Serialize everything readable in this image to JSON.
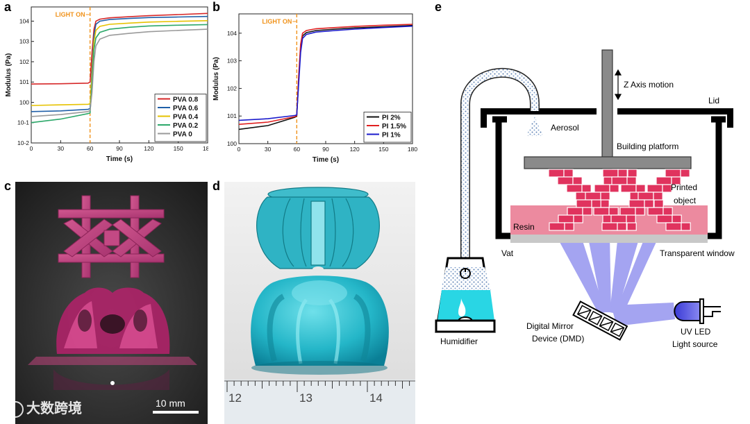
{
  "panels": {
    "a": "a",
    "b": "b",
    "c": "c",
    "d": "d",
    "e": "e"
  },
  "chart_data": [
    {
      "type": "line",
      "panel": "a",
      "xlabel": "Time (s)",
      "ylabel": "Modulus (Pa)",
      "xlim": [
        0,
        180
      ],
      "ylim": [
        0.01,
        50000
      ],
      "yscale": "log",
      "xticks": [
        0,
        30,
        60,
        90,
        120,
        150,
        180
      ],
      "yticks": [
        {
          "v": 0.01,
          "t": "10-2"
        },
        {
          "v": 0.1,
          "t": "10-1"
        },
        {
          "v": 1,
          "t": "100"
        },
        {
          "v": 10,
          "t": "101"
        },
        {
          "v": 100,
          "t": "102"
        },
        {
          "v": 1000,
          "t": "103"
        },
        {
          "v": 10000,
          "t": "104"
        }
      ],
      "annotation": "LIGHT ON",
      "annotation_x": 60,
      "legend_position": "bottom-right",
      "series": [
        {
          "name": "PVA 0.8",
          "color": "#d62728",
          "x": [
            0,
            30,
            58,
            60,
            62,
            64,
            66,
            70,
            80,
            100,
            120,
            150,
            180
          ],
          "y": [
            8,
            8.2,
            8.8,
            10,
            300,
            4000,
            10000,
            12500,
            14500,
            16500,
            18500,
            21000,
            24000
          ]
        },
        {
          "name": "PVA 0.6",
          "color": "#1f5fa8",
          "x": [
            0,
            30,
            58,
            60,
            62,
            64,
            66,
            70,
            80,
            100,
            120,
            150,
            180
          ],
          "y": [
            0.35,
            0.38,
            0.45,
            0.5,
            40,
            2000,
            7000,
            10000,
            12000,
            13500,
            15000,
            16000,
            17000
          ]
        },
        {
          "name": "PVA 0.4",
          "color": "#e6c200",
          "x": [
            0,
            30,
            58,
            60,
            62,
            64,
            66,
            70,
            80,
            100,
            120,
            150,
            180
          ],
          "y": [
            0.7,
            0.75,
            0.8,
            0.85,
            20,
            1000,
            3500,
            5500,
            7000,
            8000,
            9000,
            9800,
            10500
          ]
        },
        {
          "name": "PVA 0.2",
          "color": "#2ca86a",
          "x": [
            0,
            30,
            58,
            60,
            62,
            64,
            66,
            70,
            80,
            100,
            120,
            150,
            180
          ],
          "y": [
            0.1,
            0.15,
            0.28,
            0.3,
            8,
            400,
            1500,
            2800,
            4000,
            5000,
            5800,
            6300,
            6800
          ]
        },
        {
          "name": "PVA 0",
          "color": "#9a9a9a",
          "x": [
            0,
            30,
            58,
            60,
            62,
            64,
            66,
            70,
            80,
            100,
            120,
            150,
            180
          ],
          "y": [
            0.2,
            0.25,
            0.35,
            0.4,
            3,
            100,
            600,
            1300,
            2000,
            2500,
            3000,
            3500,
            4000
          ]
        }
      ]
    },
    {
      "type": "line",
      "panel": "b",
      "xlabel": "Time (s)",
      "ylabel": "Modulus (Pa)",
      "xlim": [
        0,
        180
      ],
      "ylim": [
        1,
        50000
      ],
      "yscale": "log",
      "xticks": [
        0,
        30,
        60,
        90,
        120,
        150,
        180
      ],
      "yticks": [
        {
          "v": 1,
          "t": "100"
        },
        {
          "v": 10,
          "t": "101"
        },
        {
          "v": 100,
          "t": "102"
        },
        {
          "v": 1000,
          "t": "103"
        },
        {
          "v": 10000,
          "t": "104"
        }
      ],
      "annotation": "LIGHT ON",
      "annotation_x": 60,
      "legend_position": "bottom-right",
      "series": [
        {
          "name": "PI 2%",
          "color": "#111111",
          "x": [
            0,
            30,
            58,
            60,
            62,
            64,
            66,
            70,
            80,
            100,
            120,
            150,
            180
          ],
          "y": [
            3.3,
            4.5,
            9,
            10,
            200,
            3000,
            8000,
            10500,
            12500,
            14000,
            15500,
            17000,
            19000
          ]
        },
        {
          "name": "PI 1.5%",
          "color": "#e02020",
          "x": [
            0,
            30,
            58,
            60,
            62,
            64,
            66,
            70,
            80,
            100,
            120,
            150,
            180
          ],
          "y": [
            5,
            6,
            9.5,
            10.5,
            300,
            4000,
            10000,
            12500,
            14500,
            16000,
            17500,
            19500,
            21000
          ]
        },
        {
          "name": "PI 1%",
          "color": "#1a1acc",
          "x": [
            0,
            30,
            58,
            60,
            62,
            64,
            66,
            70,
            80,
            100,
            120,
            150,
            180
          ],
          "y": [
            7,
            8,
            10.5,
            11,
            150,
            2000,
            6500,
            9000,
            11000,
            12500,
            14000,
            16000,
            18000
          ]
        }
      ]
    }
  ],
  "photo_c": {
    "scale_bar": "10 mm"
  },
  "photo_d": {
    "ruler_labels": [
      "12",
      "13",
      "14"
    ]
  },
  "schematic": {
    "z_axis": "Z Axis motion",
    "lid": "Lid",
    "aerosol": "Aerosol",
    "building_platform": "Building platform",
    "printed_object_1": "Printed",
    "printed_object_2": "object",
    "resin": "Resin",
    "vat": "Vat",
    "transparent_window": "Transparent window",
    "dmd_1": "Digital Mirror",
    "dmd_2": "Device (DMD)",
    "uv_led_1": "UV LED",
    "uv_led_2": "Light source",
    "humidifier": "Humidifier"
  },
  "watermark": "大数跨境",
  "colors": {
    "light_on": "#f0921a",
    "resin": "#e9758e",
    "lattice": "#e0335e",
    "uv_beam": "#5a5ae6",
    "water": "#29d6e4",
    "aerosol": "#9bb8de"
  }
}
